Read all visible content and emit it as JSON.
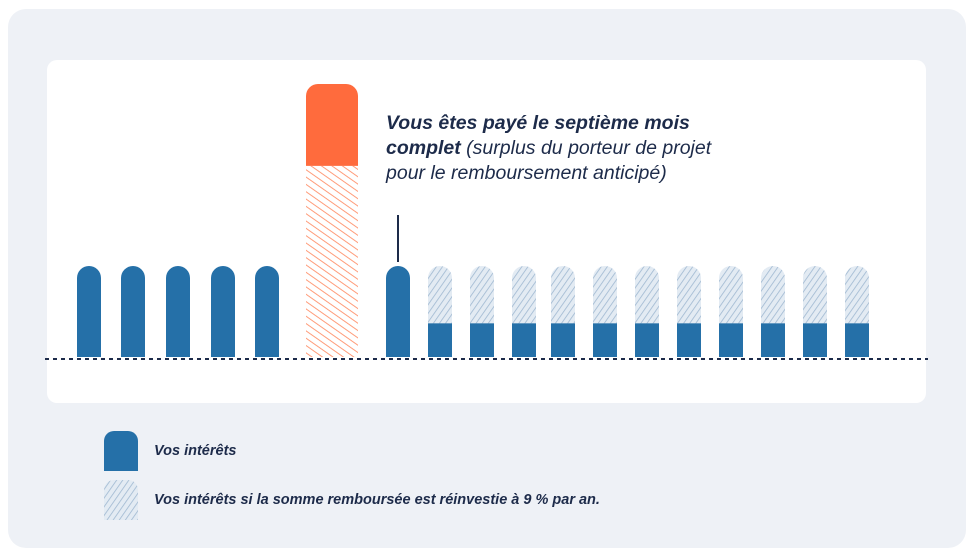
{
  "colors": {
    "interest": "#2570a8",
    "reinvested": "#b9cde0",
    "bonus_top": "#ff6b3d",
    "bonus_hatch": "#ffb59c",
    "annotation_text": "#1d2b4a"
  },
  "chart_data": {
    "type": "bar",
    "bars": [
      {
        "kind": "interest",
        "value": 1.0
      },
      {
        "kind": "interest",
        "value": 1.0
      },
      {
        "kind": "interest",
        "value": 1.0
      },
      {
        "kind": "interest",
        "value": 1.0
      },
      {
        "kind": "interest",
        "value": 1.0
      },
      {
        "kind": "bonus",
        "value": 3.0,
        "solid_top": 0.9
      },
      {
        "kind": "interest",
        "value": 1.0
      },
      {
        "kind": "split",
        "value": 1.0,
        "interest": 0.37,
        "reinvested": 0.63
      },
      {
        "kind": "split",
        "value": 1.0,
        "interest": 0.37,
        "reinvested": 0.63
      },
      {
        "kind": "split",
        "value": 1.0,
        "interest": 0.37,
        "reinvested": 0.63
      },
      {
        "kind": "split",
        "value": 1.0,
        "interest": 0.37,
        "reinvested": 0.63
      },
      {
        "kind": "split",
        "value": 1.0,
        "interest": 0.37,
        "reinvested": 0.63
      },
      {
        "kind": "split",
        "value": 1.0,
        "interest": 0.37,
        "reinvested": 0.63
      },
      {
        "kind": "split",
        "value": 1.0,
        "interest": 0.37,
        "reinvested": 0.63
      },
      {
        "kind": "split",
        "value": 1.0,
        "interest": 0.37,
        "reinvested": 0.63
      },
      {
        "kind": "split",
        "value": 1.0,
        "interest": 0.37,
        "reinvested": 0.63
      },
      {
        "kind": "split",
        "value": 1.0,
        "interest": 0.37,
        "reinvested": 0.63
      },
      {
        "kind": "split",
        "value": 1.0,
        "interest": 0.37,
        "reinvested": 0.63
      }
    ],
    "annotation": {
      "bold": "Vous êtes payé le septième mois complet",
      "rest": " (surplus du porteur de projet pour le remboursement anticipé)"
    },
    "legend": [
      {
        "kind": "interest",
        "label": "Vos intérêts"
      },
      {
        "kind": "reinvested",
        "label": "Vos intérêts si la somme remboursée est réinvestie à 9 % par an."
      }
    ]
  }
}
